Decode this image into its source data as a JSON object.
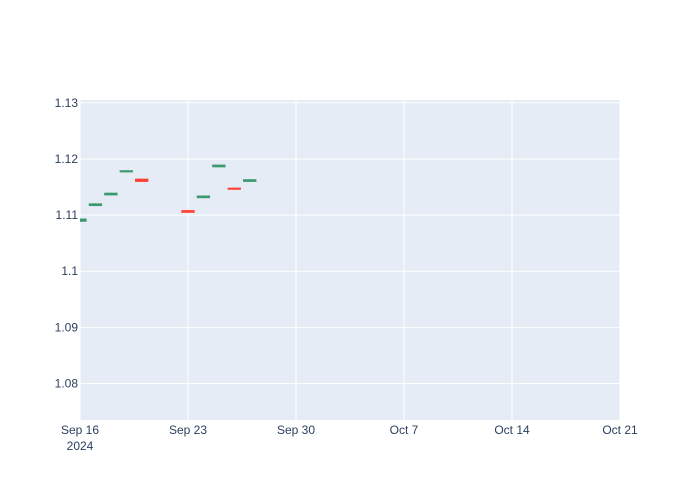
{
  "chart_data": {
    "type": "candlestick",
    "title": "",
    "xlabel": "",
    "ylabel": "",
    "x_range": [
      "2024-09-16",
      "2024-10-21"
    ],
    "ylim": [
      1.0735,
      1.1305
    ],
    "grid": true,
    "legend": "none",
    "colors": {
      "plot_bg": "#e5ecf6",
      "grid": "#ffffff",
      "increasing": "#3d9970",
      "decreasing": "#ff4136",
      "text": "#2a3f5f"
    },
    "x_ticks": [
      {
        "date": "2024-09-16",
        "label": "Sep 16",
        "sublabel": "2024"
      },
      {
        "date": "2024-09-23",
        "label": "Sep 23"
      },
      {
        "date": "2024-09-30",
        "label": "Sep 30"
      },
      {
        "date": "2024-10-07",
        "label": "Oct 7"
      },
      {
        "date": "2024-10-14",
        "label": "Oct 14"
      },
      {
        "date": "2024-10-21",
        "label": "Oct 21"
      }
    ],
    "y_ticks": [
      {
        "value": 1.08,
        "label": "1.08"
      },
      {
        "value": 1.09,
        "label": "1.09"
      },
      {
        "value": 1.1,
        "label": "1.1"
      },
      {
        "value": 1.11,
        "label": "1.11"
      },
      {
        "value": 1.12,
        "label": "1.12"
      },
      {
        "value": 1.13,
        "label": "1.13"
      }
    ],
    "candles": [
      {
        "date": "2024-09-16",
        "open": 1.1089,
        "high": 1.1094,
        "low": 1.1088,
        "close": 1.1093
      },
      {
        "date": "2024-09-17",
        "open": 1.1117,
        "high": 1.1121,
        "low": 1.1116,
        "close": 1.112
      },
      {
        "date": "2024-09-18",
        "open": 1.1136,
        "high": 1.114,
        "low": 1.1135,
        "close": 1.1139
      },
      {
        "date": "2024-09-19",
        "open": 1.1177,
        "high": 1.118,
        "low": 1.1176,
        "close": 1.1179
      },
      {
        "date": "2024-09-20",
        "open": 1.1164,
        "high": 1.1165,
        "low": 1.1159,
        "close": 1.116
      },
      {
        "date": "2024-09-23",
        "open": 1.1108,
        "high": 1.1109,
        "low": 1.1104,
        "close": 1.1105
      },
      {
        "date": "2024-09-24",
        "open": 1.1131,
        "high": 1.1135,
        "low": 1.113,
        "close": 1.1134
      },
      {
        "date": "2024-09-25",
        "open": 1.1186,
        "high": 1.119,
        "low": 1.1185,
        "close": 1.1189
      },
      {
        "date": "2024-09-26",
        "open": 1.1148,
        "high": 1.1149,
        "low": 1.1145,
        "close": 1.1146
      },
      {
        "date": "2024-09-27",
        "open": 1.116,
        "high": 1.1164,
        "low": 1.1159,
        "close": 1.1163
      }
    ]
  }
}
